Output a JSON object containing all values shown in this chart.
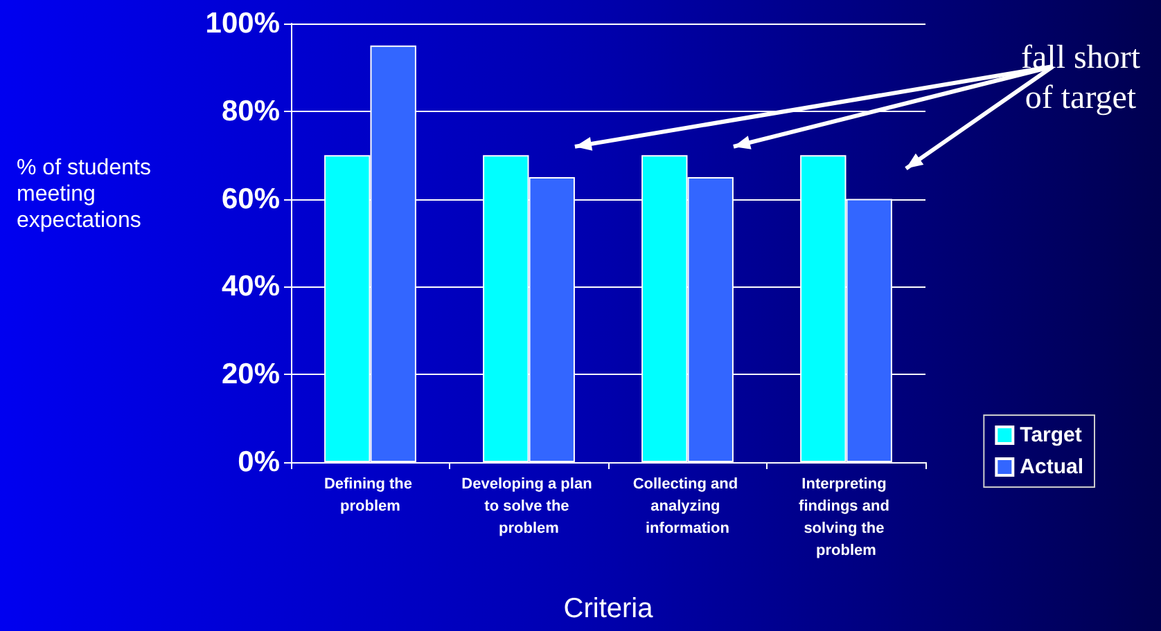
{
  "chart_data": {
    "type": "bar",
    "categories": [
      "Defining the problem",
      "Developing a plan to solve the problem",
      "Collecting and analyzing information",
      "Interpreting findings and solving the problem"
    ],
    "series": [
      {
        "name": "Target",
        "color": "#00ffff",
        "values": [
          70,
          70,
          70,
          70
        ]
      },
      {
        "name": "Actual",
        "color": "#3366ff",
        "values": [
          95,
          65,
          65,
          60
        ]
      }
    ],
    "ylim": [
      0,
      100
    ],
    "yticks": [
      {
        "value": 0,
        "label": "0%"
      },
      {
        "value": 20,
        "label": "20%"
      },
      {
        "value": 40,
        "label": "40%"
      },
      {
        "value": 60,
        "label": "60%"
      },
      {
        "value": 80,
        "label": "80%"
      },
      {
        "value": 100,
        "label": "100%"
      }
    ],
    "ylabel": "% of students meeting expectations",
    "xlabel": "Criteria",
    "annotations": [
      "fall short of target"
    ],
    "grid": "y",
    "legend": "right"
  }
}
